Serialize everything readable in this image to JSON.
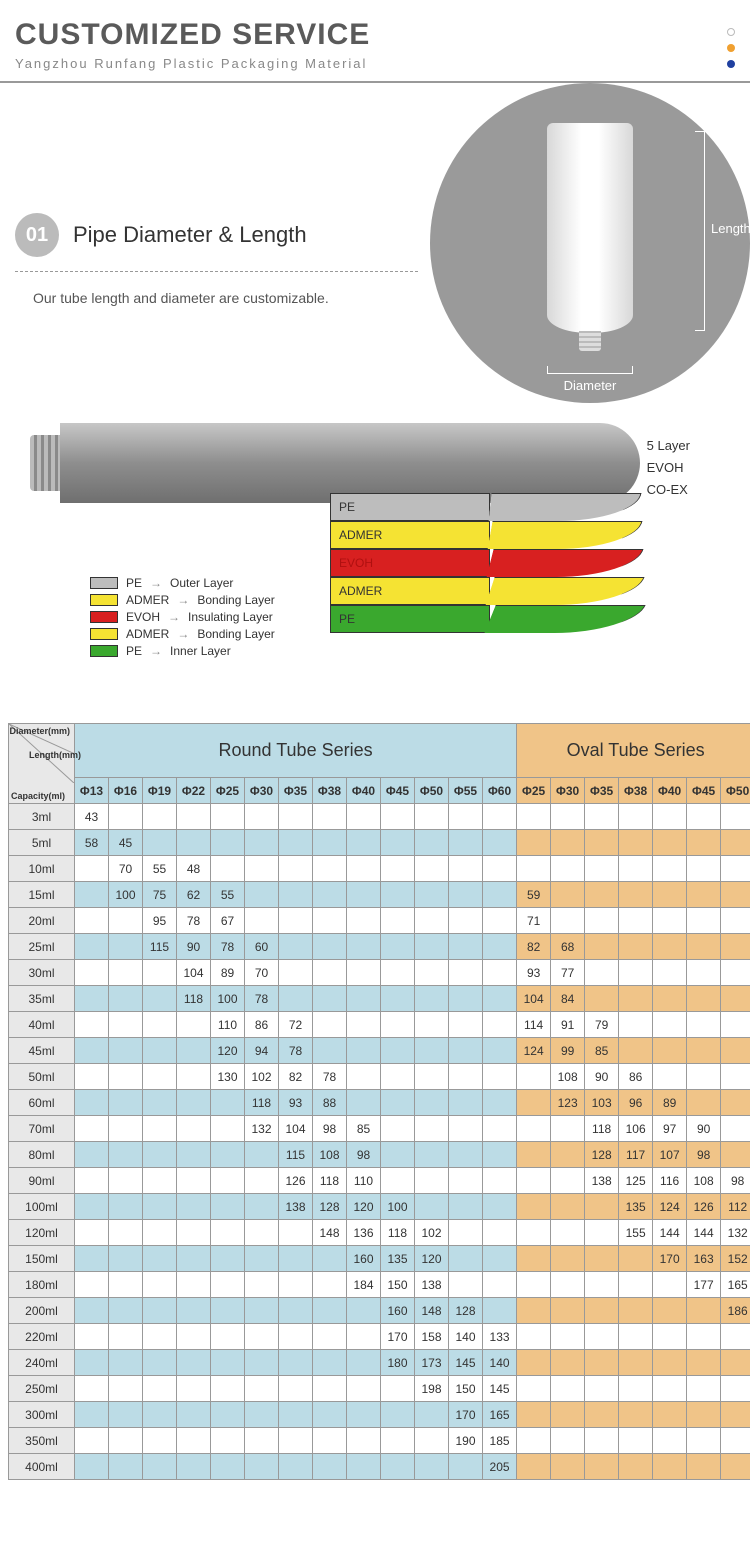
{
  "header": {
    "title": "CUSTOMIZED SERVICE",
    "subtitle": "Yangzhou Runfang Plastic Packaging Material"
  },
  "dots": [
    "#ffffff",
    "#f0a030",
    "#2040a0"
  ],
  "section1": {
    "num": "01",
    "title": "Pipe Diameter & Length",
    "desc": "Our tube length and diameter are customizable.",
    "length_label": "Length",
    "diameter_label": "Diameter"
  },
  "layer_side": [
    "5 Layer",
    "EVOH",
    "CO-EX"
  ],
  "layers": [
    {
      "name": "PE",
      "desc": "Outer Layer",
      "color": "#bdbdbd",
      "text": "#333"
    },
    {
      "name": "ADMER",
      "desc": "Bonding Layer",
      "color": "#f5e333",
      "text": "#333"
    },
    {
      "name": "EVOH",
      "desc": "Insulating Layer",
      "color": "#d82020",
      "text": "#b01010"
    },
    {
      "name": "ADMER",
      "desc": "Bonding Layer",
      "color": "#f5e333",
      "text": "#333"
    },
    {
      "name": "PE",
      "desc": "Inner Layer",
      "color": "#3aa82e",
      "text": "#333"
    }
  ],
  "corner_labels": {
    "diameter": "Diameter(mm)",
    "length": "Length(mm)",
    "capacity": "Capacity(ml)"
  },
  "series": {
    "round": "Round Tube Series",
    "oval": "Oval Tube Series"
  },
  "round_cols": [
    "Φ13",
    "Φ16",
    "Φ19",
    "Φ22",
    "Φ25",
    "Φ30",
    "Φ35",
    "Φ38",
    "Φ40",
    "Φ45",
    "Φ50",
    "Φ55",
    "Φ60"
  ],
  "oval_cols": [
    "Φ25",
    "Φ30",
    "Φ35",
    "Φ38",
    "Φ40",
    "Φ45",
    "Φ50"
  ],
  "capacities": [
    "3ml",
    "5ml",
    "10ml",
    "15ml",
    "20ml",
    "25ml",
    "30ml",
    "35ml",
    "40ml",
    "45ml",
    "50ml",
    "60ml",
    "70ml",
    "80ml",
    "90ml",
    "100ml",
    "120ml",
    "150ml",
    "180ml",
    "200ml",
    "220ml",
    "240ml",
    "250ml",
    "300ml",
    "350ml",
    "400ml"
  ],
  "round_data": {
    "3ml": {
      "Φ13": 43
    },
    "5ml": {
      "Φ13": 58,
      "Φ16": 45
    },
    "10ml": {
      "Φ16": 70,
      "Φ19": 55,
      "Φ22": 48
    },
    "15ml": {
      "Φ16": 100,
      "Φ19": 75,
      "Φ22": 62,
      "Φ25": 55
    },
    "20ml": {
      "Φ19": 95,
      "Φ22": 78,
      "Φ25": 67
    },
    "25ml": {
      "Φ19": 115,
      "Φ22": 90,
      "Φ25": 78,
      "Φ30": 60
    },
    "30ml": {
      "Φ22": 104,
      "Φ25": 89,
      "Φ30": 70
    },
    "35ml": {
      "Φ22": 118,
      "Φ25": 100,
      "Φ30": 78
    },
    "40ml": {
      "Φ25": 110,
      "Φ30": 86,
      "Φ35": 72
    },
    "45ml": {
      "Φ25": 120,
      "Φ30": 94,
      "Φ35": 78
    },
    "50ml": {
      "Φ25": 130,
      "Φ30": 102,
      "Φ35": 82,
      "Φ38": 78
    },
    "60ml": {
      "Φ30": 118,
      "Φ35": 93,
      "Φ38": 88
    },
    "70ml": {
      "Φ30": 132,
      "Φ35": 104,
      "Φ38": 98,
      "Φ40": 85
    },
    "80ml": {
      "Φ35": 115,
      "Φ38": 108,
      "Φ40": 98
    },
    "90ml": {
      "Φ35": 126,
      "Φ38": 118,
      "Φ40": 110
    },
    "100ml": {
      "Φ35": 138,
      "Φ38": 128,
      "Φ40": 120,
      "Φ45": 100
    },
    "120ml": {
      "Φ38": 148,
      "Φ40": 136,
      "Φ45": 118,
      "Φ50": 102
    },
    "150ml": {
      "Φ40": 160,
      "Φ45": 135,
      "Φ50": 120
    },
    "180ml": {
      "Φ40": 184,
      "Φ45": 150,
      "Φ50": 138
    },
    "200ml": {
      "Φ45": 160,
      "Φ50": 148,
      "Φ55": 128
    },
    "220ml": {
      "Φ45": 170,
      "Φ50": 158,
      "Φ55": 140,
      "Φ60": 133
    },
    "240ml": {
      "Φ45": 180,
      "Φ50": 173,
      "Φ55": 145,
      "Φ60": 140
    },
    "250ml": {
      "Φ50": 198,
      "Φ55": 150,
      "Φ60": 145
    },
    "300ml": {
      "Φ55": 170,
      "Φ60": 165
    },
    "350ml": {
      "Φ55": 190,
      "Φ60": 185
    },
    "400ml": {
      "Φ60": 205
    }
  },
  "oval_data": {
    "15ml": {
      "Φ25": 59
    },
    "20ml": {
      "Φ25": 71
    },
    "25ml": {
      "Φ25": 82,
      "Φ30": 68
    },
    "30ml": {
      "Φ25": 93,
      "Φ30": 77
    },
    "35ml": {
      "Φ25": 104,
      "Φ30": 84
    },
    "40ml": {
      "Φ25": 114,
      "Φ30": 91,
      "Φ35": 79
    },
    "45ml": {
      "Φ25": 124,
      "Φ30": 99,
      "Φ35": 85
    },
    "50ml": {
      "Φ30": 108,
      "Φ35": 90,
      "Φ38": 86
    },
    "60ml": {
      "Φ30": 123,
      "Φ35": 103,
      "Φ38": 96,
      "Φ40": 89
    },
    "70ml": {
      "Φ35": 118,
      "Φ38": 106,
      "Φ40": 97,
      "Φ45": 90
    },
    "80ml": {
      "Φ35": 128,
      "Φ38": 117,
      "Φ40": 107,
      "Φ45": 98
    },
    "90ml": {
      "Φ35": 138,
      "Φ38": 125,
      "Φ40": 116,
      "Φ45": 108,
      "Φ50": 98
    },
    "100ml": {
      "Φ38": 135,
      "Φ40": 124,
      "Φ45": 126,
      "Φ50": 112
    },
    "120ml": {
      "Φ38": 155,
      "Φ40": 144,
      "Φ45": 144,
      "Φ50": 132
    },
    "150ml": {
      "Φ40": 170,
      "Φ45": 163,
      "Φ50": 152
    },
    "180ml": {
      "Φ45": 177,
      "Φ50": 165
    },
    "200ml": {
      "Φ50": 186
    }
  },
  "alt_rows": [
    "5ml",
    "15ml",
    "25ml",
    "35ml",
    "45ml",
    "60ml",
    "80ml",
    "100ml",
    "150ml",
    "200ml",
    "240ml",
    "300ml",
    "400ml"
  ]
}
